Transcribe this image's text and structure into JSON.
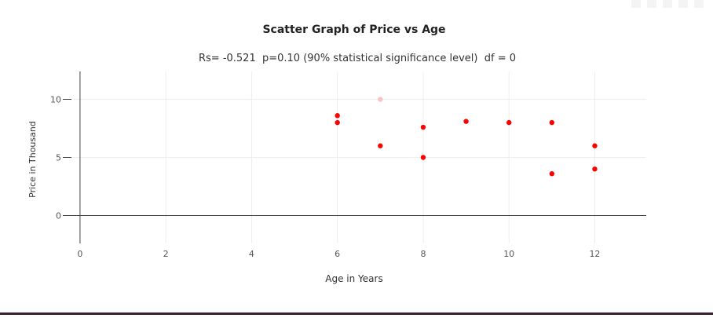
{
  "chart_data": {
    "type": "scatter",
    "title": "Scatter Graph of Price vs Age",
    "subtitle": "Rs= -0.521  p=0.10 (90% statistical significance level)  df = 0",
    "xlabel": "Age in Years",
    "ylabel": "Price in Thousand",
    "xlim": [
      -0.2,
      13.2
    ],
    "ylim": [
      -2.4,
      12.4
    ],
    "x_ticks": [
      0,
      2,
      4,
      6,
      8,
      10,
      12
    ],
    "y_ticks": [
      0,
      5,
      10
    ],
    "grid": true,
    "colors": {
      "point": "#ff0000",
      "faded_point": "#f7c2c2",
      "grid": "#eeeeee",
      "zeroline": "#444444",
      "axis": "#444444",
      "text": "#333333"
    },
    "series": [
      {
        "points": [
          {
            "x": 6,
            "y": 8.6
          },
          {
            "x": 6,
            "y": 8.0
          },
          {
            "x": 7,
            "y": 10.0,
            "faded": true
          },
          {
            "x": 7,
            "y": 6.0
          },
          {
            "x": 8,
            "y": 7.6
          },
          {
            "x": 8,
            "y": 5.0
          },
          {
            "x": 9,
            "y": 8.1
          },
          {
            "x": 10,
            "y": 8.0
          },
          {
            "x": 11,
            "y": 8.0
          },
          {
            "x": 11,
            "y": 3.6
          },
          {
            "x": 12,
            "y": 6.0
          },
          {
            "x": 12,
            "y": 4.0
          }
        ]
      }
    ]
  }
}
